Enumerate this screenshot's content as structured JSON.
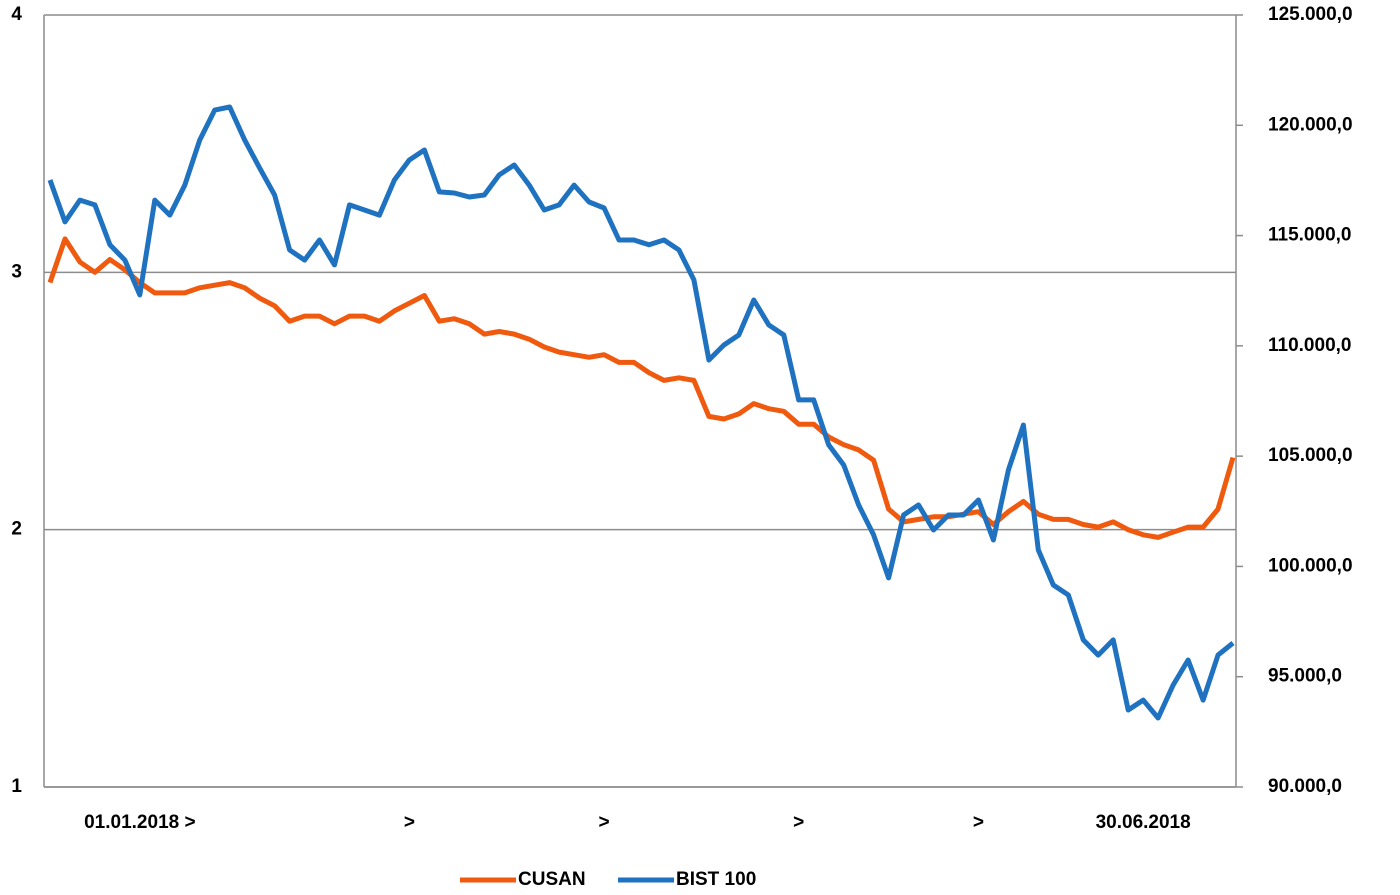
{
  "chart_data": {
    "type": "line",
    "categories": [
      null,
      null,
      null,
      null,
      null,
      null,
      "01.01.2018 >",
      null,
      null,
      null,
      null,
      null,
      null,
      null,
      null,
      null,
      null,
      null,
      null,
      null,
      null,
      null,
      null,
      null,
      ">",
      null,
      null,
      null,
      null,
      null,
      null,
      null,
      null,
      null,
      null,
      null,
      null,
      ">",
      null,
      null,
      null,
      null,
      null,
      null,
      null,
      null,
      null,
      null,
      null,
      null,
      ">",
      null,
      null,
      null,
      null,
      null,
      null,
      null,
      null,
      null,
      null,
      null,
      ">",
      null,
      null,
      null,
      null,
      null,
      null,
      null,
      null,
      null,
      null,
      "30.06.2018",
      null,
      null,
      null,
      null,
      null,
      null
    ],
    "series": [
      {
        "name": "CUSAN",
        "color": "#f05a0f",
        "values": [
          2.96,
          3.13,
          3.04,
          3.0,
          3.05,
          3.01,
          2.96,
          2.92,
          2.92,
          2.92,
          2.94,
          2.95,
          2.96,
          2.94,
          2.9,
          2.87,
          2.81,
          2.83,
          2.83,
          2.8,
          2.83,
          2.83,
          2.81,
          2.85,
          2.88,
          2.91,
          2.81,
          2.82,
          2.8,
          2.76,
          2.77,
          2.76,
          2.74,
          2.71,
          2.69,
          2.68,
          2.67,
          2.68,
          2.65,
          2.65,
          2.61,
          2.58,
          2.59,
          2.58,
          2.44,
          2.43,
          2.45,
          2.49,
          2.47,
          2.46,
          2.41,
          2.41,
          2.36,
          2.33,
          2.31,
          2.27,
          2.08,
          2.03,
          2.04,
          2.05,
          2.05,
          2.06,
          2.07,
          2.02,
          2.07,
          2.11,
          2.06,
          2.04,
          2.04,
          2.02,
          2.01,
          2.03,
          2.0,
          1.98,
          1.97,
          1.99,
          2.01,
          2.01,
          2.08,
          2.28
        ]
      },
      {
        "name": "BIST 100",
        "color": "#1f72c0",
        "axis": "y2",
        "values": [
          117520,
          115620,
          116610,
          116390,
          114580,
          113890,
          112310,
          116610,
          115930,
          117290,
          119330,
          120690,
          120830,
          119330,
          118070,
          116840,
          114350,
          113890,
          114800,
          113670,
          116390,
          116160,
          115930,
          117520,
          118430,
          118880,
          116980,
          116930,
          116750,
          116840,
          117750,
          118200,
          117290,
          116160,
          116390,
          117290,
          116520,
          116250,
          114800,
          114800,
          114580,
          114800,
          114350,
          112990,
          109360,
          110040,
          110490,
          112080,
          110950,
          110490,
          107550,
          107550,
          105510,
          104600,
          102790,
          101430,
          99480,
          102330,
          102790,
          101650,
          102330,
          102330,
          103010,
          101200,
          104370,
          106410,
          100750,
          99160,
          98710,
          96670,
          95980,
          96670,
          93490,
          93940,
          93130,
          94620,
          95760,
          93940,
          95980,
          96530
        ]
      }
    ],
    "ylim": [
      1,
      4
    ],
    "yticks": [
      1,
      2,
      3,
      4
    ],
    "y2lim": [
      90000,
      125000
    ],
    "y2ticks": [
      {
        "value": 90000,
        "label": "90.000,0"
      },
      {
        "value": 95000,
        "label": "95.000,0"
      },
      {
        "value": 100000,
        "label": "100.000,0"
      },
      {
        "value": 105000,
        "label": "105.000,0"
      },
      {
        "value": 110000,
        "label": "110.000,0"
      },
      {
        "value": 115000,
        "label": "115.000,0"
      },
      {
        "value": 120000,
        "label": "120.000,0"
      },
      {
        "value": 125000,
        "label": "125.000,0"
      }
    ],
    "grid": true,
    "legend": "bottom"
  }
}
